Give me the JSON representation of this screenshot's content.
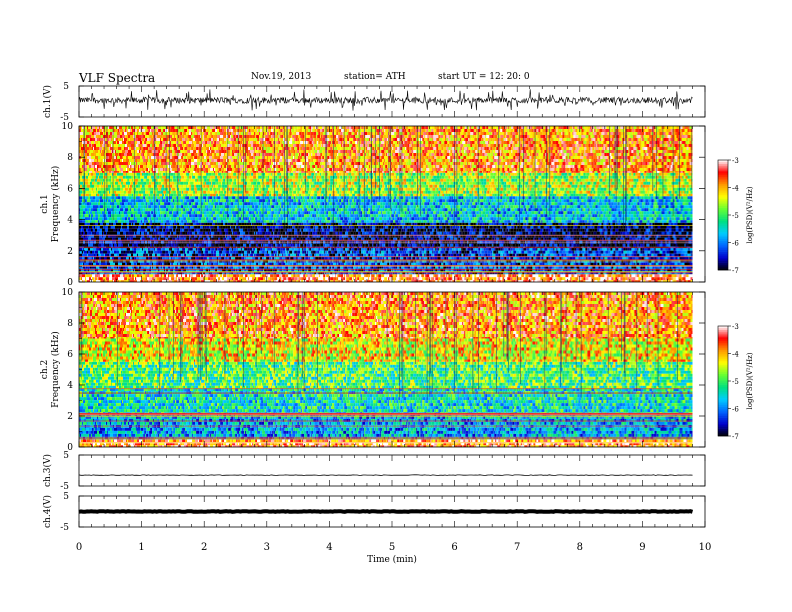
{
  "header": {
    "title": "VLF  Spectra",
    "date": "Nov.19, 2013",
    "station": "station= ATH",
    "start": "start  UT  =    12: 20: 0"
  },
  "chart_data": [
    {
      "type": "line",
      "panel": "ch1-waveform",
      "ylabel": "ch.1(V)",
      "ylim": [
        -5,
        5
      ],
      "yticks": [
        "5",
        "-5"
      ],
      "x_range_min": [
        0,
        9.8
      ],
      "series": [
        {
          "values_summary": "noisy waveform centred near +0.5 V, spikes to about -3 V"
        }
      ]
    },
    {
      "type": "heatmap",
      "panel": "ch1-spectrogram",
      "ylabel": "ch.1  Frequency  (kHz)",
      "ylim": [
        0,
        10
      ],
      "yticks": [
        "0",
        "2",
        "4",
        "6",
        "8",
        "10"
      ],
      "x_range_min": [
        0,
        9.8
      ],
      "bands": [
        {
          "from_khz": 0,
          "to_khz": 0.5,
          "level": -3.5
        },
        {
          "from_khz": 0.5,
          "to_khz": 2.2,
          "level": -6.3
        },
        {
          "from_khz": 2.2,
          "to_khz": 3.8,
          "level": -6.8
        },
        {
          "from_khz": 3.8,
          "to_khz": 5.5,
          "level": -5.6
        },
        {
          "from_khz": 5.5,
          "to_khz": 7.0,
          "level": -4.6
        },
        {
          "from_khz": 7.0,
          "to_khz": 10.0,
          "level": -3.8
        }
      ],
      "colorbar": {
        "label": "log(PSD)(V²/Hz)",
        "range": [
          -7,
          -3
        ],
        "ticks": [
          "-3",
          "-4",
          "-5",
          "-6",
          "-7"
        ]
      }
    },
    {
      "type": "heatmap",
      "panel": "ch2-spectrogram",
      "ylabel": "ch.2  Frequency  (kHz)",
      "ylim": [
        0,
        10
      ],
      "yticks": [
        "0",
        "2",
        "4",
        "6",
        "8",
        "10"
      ],
      "x_range_min": [
        0,
        9.8
      ],
      "bands": [
        {
          "from_khz": 0,
          "to_khz": 0.5,
          "level": -3.6
        },
        {
          "from_khz": 0.5,
          "to_khz": 2.2,
          "level": -5.8
        },
        {
          "from_khz": 2.2,
          "to_khz": 3.8,
          "level": -5.4
        },
        {
          "from_khz": 3.8,
          "to_khz": 5.5,
          "level": -5.0
        },
        {
          "from_khz": 5.5,
          "to_khz": 7.0,
          "level": -4.3
        },
        {
          "from_khz": 7.0,
          "to_khz": 10.0,
          "level": -3.8
        }
      ],
      "colorbar": {
        "label": "log(PSD)(V²/Hz)",
        "range": [
          -7,
          -3
        ],
        "ticks": [
          "-3",
          "-4",
          "-5",
          "-6",
          "-7"
        ]
      }
    },
    {
      "type": "line",
      "panel": "ch3-waveform",
      "ylabel": "ch.3(V)",
      "ylim": [
        -5,
        5
      ],
      "yticks": [
        "5",
        "-5"
      ],
      "x_range_min": [
        0,
        9.8
      ],
      "series": [
        {
          "values": [
            -1.5
          ],
          "values_summary": "nearly flat at about -1.5 V"
        }
      ]
    },
    {
      "type": "line",
      "panel": "ch4-waveform",
      "ylabel": "ch.4(V)",
      "ylim": [
        -5,
        5
      ],
      "yticks": [
        "5",
        "-5"
      ],
      "x_range_min": [
        0,
        9.8
      ],
      "series": [
        {
          "values": [
            0
          ],
          "values_summary": "thick flat line at about 0 V"
        }
      ]
    }
  ],
  "xaxis": {
    "label": "Time  (min)",
    "ticks": [
      "0",
      "1",
      "2",
      "3",
      "4",
      "5",
      "6",
      "7",
      "8",
      "9",
      "10"
    ],
    "range": [
      0,
      10
    ]
  },
  "colors": {
    "colormap": [
      "#000000",
      "#0000cc",
      "#0066ff",
      "#00ccff",
      "#00e080",
      "#66ff33",
      "#ffff00",
      "#ff9900",
      "#ff0000",
      "#ffffff"
    ]
  }
}
